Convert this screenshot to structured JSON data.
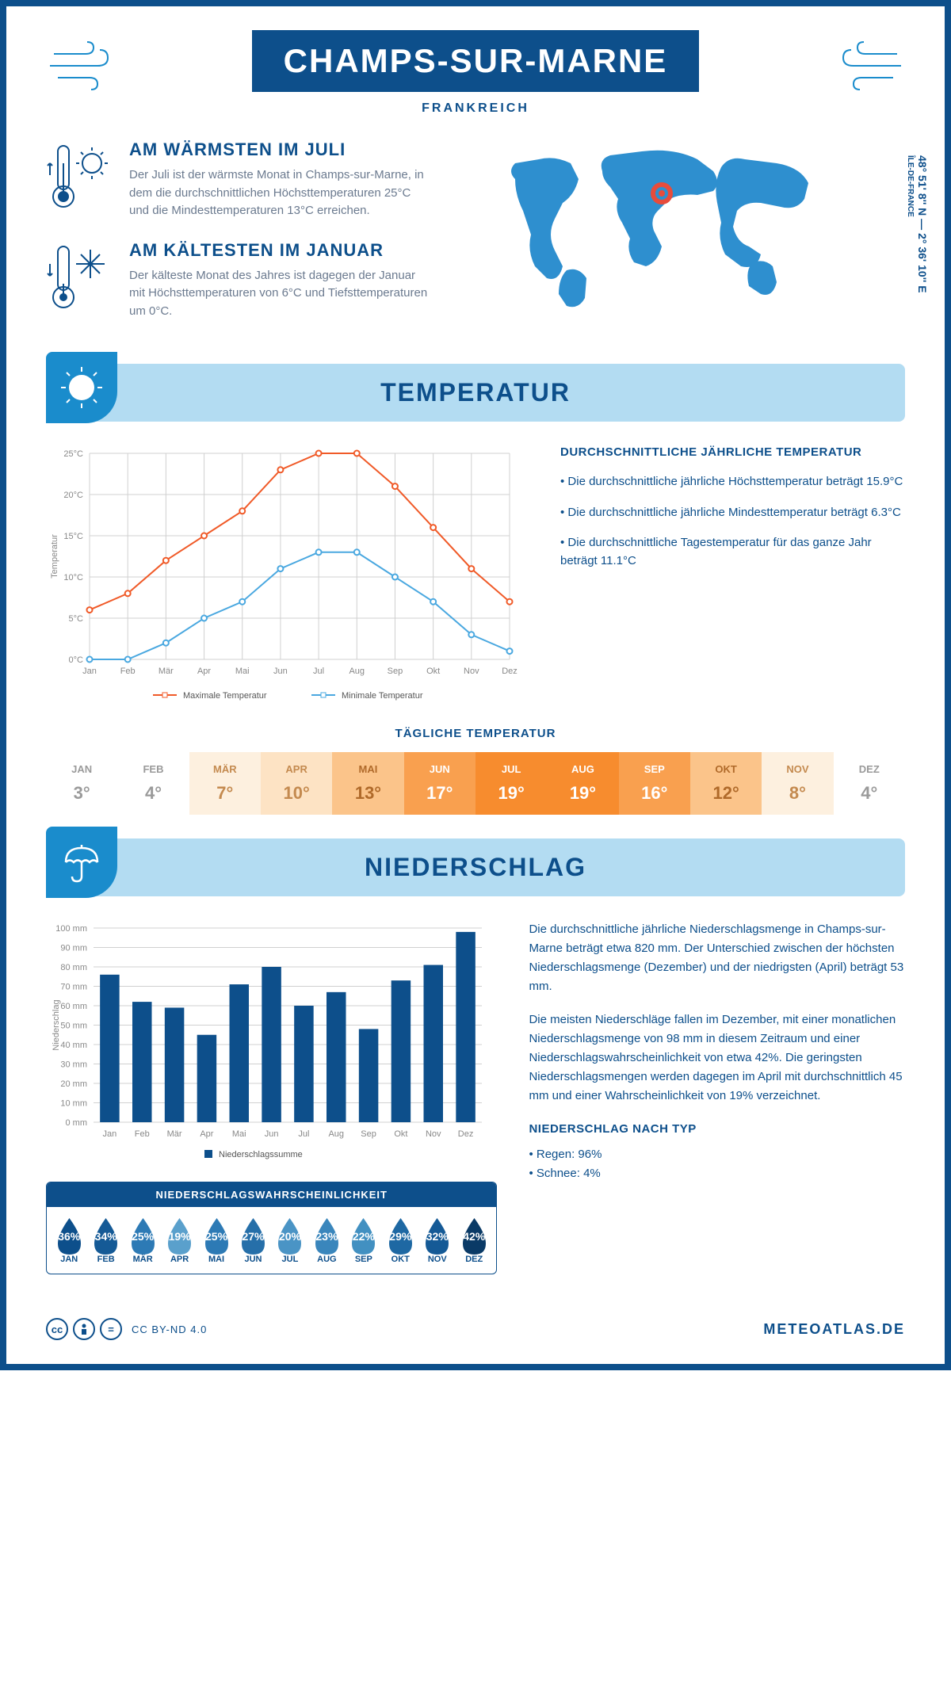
{
  "header": {
    "city": "CHAMPS-SUR-MARNE",
    "country": "FRANKREICH",
    "coords": "48° 51' 8'' N — 2° 36' 10'' E",
    "region": "ÎLE-DE-FRANCE"
  },
  "highlights": {
    "warm_title": "AM WÄRMSTEN IM JULI",
    "warm_desc": "Der Juli ist der wärmste Monat in Champs-sur-Marne, in dem die durchschnittlichen Höchsttemperaturen 25°C und die Mindesttemperaturen 13°C erreichen.",
    "cold_title": "AM KÄLTESTEN IM JANUAR",
    "cold_desc": "Der kälteste Monat des Jahres ist dagegen der Januar mit Höchsttemperaturen von 6°C und Tiefsttemperaturen um 0°C."
  },
  "sections": {
    "temperature": "TEMPERATUR",
    "precipitation": "NIEDERSCHLAG"
  },
  "temp_chart": {
    "type": "line",
    "months": [
      "Jan",
      "Feb",
      "Mär",
      "Apr",
      "Mai",
      "Jun",
      "Jul",
      "Aug",
      "Sep",
      "Okt",
      "Nov",
      "Dez"
    ],
    "max_series": [
      6,
      8,
      12,
      15,
      18,
      23,
      25,
      25,
      21,
      16,
      11,
      7
    ],
    "min_series": [
      0,
      0,
      2,
      5,
      7,
      11,
      13,
      13,
      10,
      7,
      3,
      1
    ],
    "max_color": "#f05a28",
    "min_color": "#4aa8e0",
    "grid_color": "#d0d0d0",
    "ylabel": "Temperatur",
    "ylim": [
      0,
      25
    ],
    "ytick_step": 5,
    "legend_max": "Maximale Temperatur",
    "legend_min": "Minimale Temperatur",
    "label_fontsize": 11,
    "tick_fontsize": 11
  },
  "temp_info": {
    "title": "DURCHSCHNITTLICHE JÄHRLICHE TEMPERATUR",
    "items": [
      "• Die durchschnittliche jährliche Höchsttemperatur beträgt 15.9°C",
      "• Die durchschnittliche jährliche Mindesttemperatur beträgt 6.3°C",
      "• Die durchschnittliche Tagestemperatur für das ganze Jahr beträgt 11.1°C"
    ]
  },
  "daily_temp": {
    "title": "TÄGLICHE TEMPERATUR",
    "months": [
      "JAN",
      "FEB",
      "MÄR",
      "APR",
      "MAI",
      "JUN",
      "JUL",
      "AUG",
      "SEP",
      "OKT",
      "NOV",
      "DEZ"
    ],
    "values": [
      "3°",
      "4°",
      "7°",
      "10°",
      "13°",
      "17°",
      "19°",
      "19°",
      "16°",
      "12°",
      "8°",
      "4°"
    ],
    "bg_colors": [
      "#ffffff",
      "#ffffff",
      "#fdf0df",
      "#fde3c4",
      "#fbc48a",
      "#f9a04f",
      "#f78c2e",
      "#f78c2e",
      "#f9a04f",
      "#fbc48a",
      "#fdf0df",
      "#ffffff"
    ],
    "txt_colors": [
      "#9a9a9a",
      "#9a9a9a",
      "#c48a4f",
      "#c48a4f",
      "#b06a2a",
      "#ffffff",
      "#ffffff",
      "#ffffff",
      "#ffffff",
      "#b06a2a",
      "#c48a4f",
      "#9a9a9a"
    ]
  },
  "precip_chart": {
    "type": "bar",
    "months": [
      "Jan",
      "Feb",
      "Mär",
      "Apr",
      "Mai",
      "Jun",
      "Jul",
      "Aug",
      "Sep",
      "Okt",
      "Nov",
      "Dez"
    ],
    "values": [
      76,
      62,
      59,
      45,
      71,
      80,
      60,
      67,
      48,
      73,
      81,
      98
    ],
    "bar_color": "#0d4f8b",
    "grid_color": "#d0d0d0",
    "ylabel": "Niederschlag",
    "ylim": [
      0,
      100
    ],
    "ytick_step": 10,
    "legend": "Niederschlagssumme",
    "label_fontsize": 11,
    "tick_fontsize": 11
  },
  "precip_info": {
    "p1": "Die durchschnittliche jährliche Niederschlagsmenge in Champs-sur-Marne beträgt etwa 820 mm. Der Unterschied zwischen der höchsten Niederschlagsmenge (Dezember) und der niedrigsten (April) beträgt 53 mm.",
    "p2": "Die meisten Niederschläge fallen im Dezember, mit einer monatlichen Niederschlagsmenge von 98 mm in diesem Zeitraum und einer Niederschlagswahrscheinlichkeit von etwa 42%. Die geringsten Niederschlagsmengen werden dagegen im April mit durchschnittlich 45 mm und einer Wahrscheinlichkeit von 19% verzeichnet.",
    "type_title": "NIEDERSCHLAG NACH TYP",
    "type_rain": "• Regen: 96%",
    "type_snow": "• Schnee: 4%"
  },
  "probability": {
    "title": "NIEDERSCHLAGSWAHRSCHEINLICHKEIT",
    "months": [
      "JAN",
      "FEB",
      "MÄR",
      "APR",
      "MAI",
      "JUN",
      "JUL",
      "AUG",
      "SEP",
      "OKT",
      "NOV",
      "DEZ"
    ],
    "values": [
      "36%",
      "34%",
      "25%",
      "19%",
      "25%",
      "27%",
      "20%",
      "23%",
      "22%",
      "29%",
      "32%",
      "42%"
    ],
    "drop_colors": [
      "#0d4f8b",
      "#155a96",
      "#2d7ab5",
      "#5aa0cc",
      "#2d7ab5",
      "#266fa9",
      "#4a94c5",
      "#3a86bc",
      "#4290c1",
      "#1e68a3",
      "#155a96",
      "#0a3a66"
    ]
  },
  "footer": {
    "license": "CC BY-ND 4.0",
    "brand": "METEOATLAS.DE"
  },
  "colors": {
    "primary": "#0d4f8b",
    "accent": "#1a8ccc",
    "light_blue": "#b3dcf2",
    "marker_red": "#e74c3c"
  }
}
